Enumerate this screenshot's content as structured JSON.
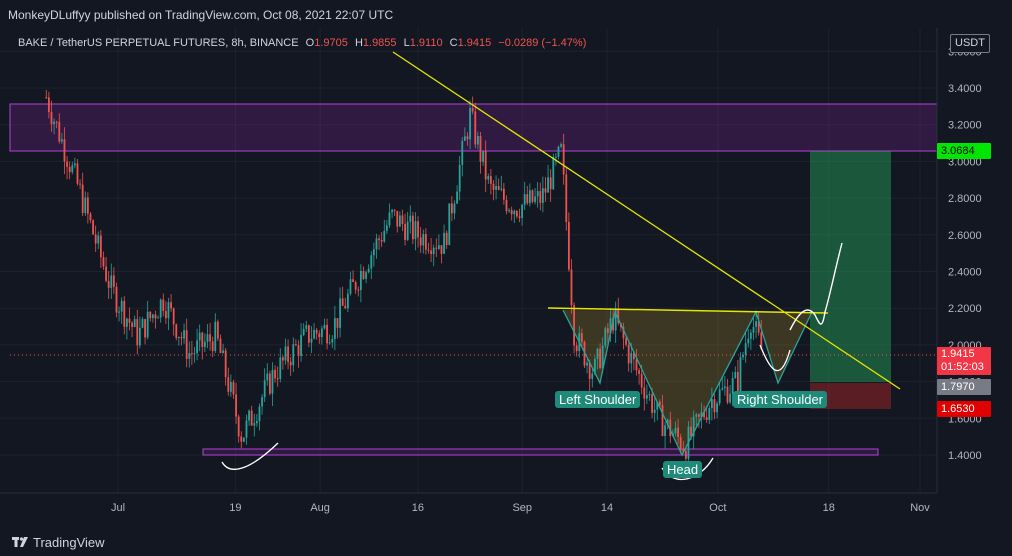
{
  "header": {
    "publisher_line": "MonkeyDLuffyy published on TradingView.com, Oct 08, 2021 22:07 UTC"
  },
  "legend": {
    "symbol": "BAKE / TetherUS PERPETUAL FUTURES, 8h, BINANCE",
    "open_key": "O",
    "open": "1.9705",
    "high_key": "H",
    "high": "1.9855",
    "low_key": "L",
    "low": "1.9110",
    "close_key": "C",
    "close": "1.9415",
    "change": "−0.0289 (−1.47%)"
  },
  "currency": "USDT",
  "price_labels": {
    "target": {
      "value": "3.0684",
      "color": "#00e600",
      "text_color": "#000000"
    },
    "last": {
      "value": "1.9415",
      "timer": "01:52:03",
      "color": "#f23645",
      "text_color": "#ffffff"
    },
    "entry": {
      "value": "1.7970",
      "color": "#787b86",
      "text_color": "#ffffff"
    },
    "stop": {
      "value": "1.6530",
      "color": "#e00000",
      "text_color": "#ffffff"
    }
  },
  "annotations": {
    "left_shoulder": "Left Shoulder",
    "head": "Head",
    "right_shoulder": "Right Shoulder"
  },
  "footer": {
    "brand": "TradingView"
  },
  "colors": {
    "up": "#26a69a",
    "down": "#ef5350",
    "trendline": "#e6e600",
    "zone": "#b044d6",
    "background": "#131722"
  },
  "chart_data": {
    "type": "candlestick",
    "title": "BAKE / TetherUS PERPETUAL FUTURES, 8h, BINANCE",
    "y_ticks": [
      "1.4000",
      "1.6000",
      "1.8000",
      "2.0000",
      "2.2000",
      "2.4000",
      "2.6000",
      "2.8000",
      "3.0000",
      "3.2000",
      "3.4000",
      "3.6000"
    ],
    "x_ticks": [
      "Jul",
      "19",
      "Aug",
      "16",
      "Sep",
      "14",
      "Oct",
      "18",
      "Nov"
    ],
    "ylim": [
      1.3,
      3.65
    ],
    "grid": true,
    "resistance_zone": [
      3.06,
      3.31
    ],
    "support_zone": [
      1.41,
      1.43
    ],
    "neckline": 2.19,
    "trendline": {
      "start": 3.7,
      "end": 1.78
    },
    "long_position": {
      "entry": 1.797,
      "target": 3.0684,
      "stop": 1.653
    },
    "path_points": [
      {
        "date": "2021-06-20",
        "price": 3.35
      },
      {
        "date": "2021-06-25",
        "price": 2.85
      },
      {
        "date": "2021-06-30",
        "price": 2.3
      },
      {
        "date": "2021-07-04",
        "price": 2.05
      },
      {
        "date": "2021-07-08",
        "price": 2.25
      },
      {
        "date": "2021-07-12",
        "price": 1.95
      },
      {
        "date": "2021-07-16",
        "price": 2.05
      },
      {
        "date": "2021-07-20",
        "price": 1.5
      },
      {
        "date": "2021-07-25",
        "price": 1.85
      },
      {
        "date": "2021-07-30",
        "price": 2.05
      },
      {
        "date": "2021-08-03",
        "price": 2.1
      },
      {
        "date": "2021-08-08",
        "price": 2.45
      },
      {
        "date": "2021-08-12",
        "price": 2.7
      },
      {
        "date": "2021-08-16",
        "price": 2.6
      },
      {
        "date": "2021-08-20",
        "price": 2.55
      },
      {
        "date": "2021-08-24",
        "price": 3.25
      },
      {
        "date": "2021-08-27",
        "price": 2.85
      },
      {
        "date": "2021-08-31",
        "price": 2.75
      },
      {
        "date": "2021-09-04",
        "price": 2.8
      },
      {
        "date": "2021-09-07",
        "price": 3.05
      },
      {
        "date": "2021-09-09",
        "price": 2.05
      },
      {
        "date": "2021-09-12",
        "price": 1.85
      },
      {
        "date": "2021-09-15",
        "price": 2.15
      },
      {
        "date": "2021-09-18",
        "price": 1.9
      },
      {
        "date": "2021-09-22",
        "price": 1.6
      },
      {
        "date": "2021-09-26",
        "price": 1.45
      },
      {
        "date": "2021-09-30",
        "price": 1.7
      },
      {
        "date": "2021-10-04",
        "price": 1.8
      },
      {
        "date": "2021-10-06",
        "price": 2.15
      },
      {
        "date": "2021-10-08",
        "price": 1.94
      }
    ]
  }
}
